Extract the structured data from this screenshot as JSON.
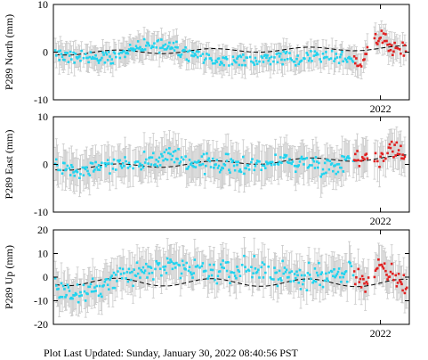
{
  "footer": "Plot Last Updated:   Sunday, January 30, 2022 08:40:56 PST",
  "colors": {
    "points_primary": "#22d3ee",
    "points_recent": "#e02020",
    "error_bars": "#c8c8c8",
    "trend": "#000000",
    "frame": "#000000",
    "background": "#ffffff"
  },
  "chart_data": [
    {
      "type": "scatter",
      "ylabel": "P289 North (mm)",
      "ylim": [
        -10,
        10
      ],
      "yticks": [
        -10,
        0,
        10
      ],
      "xlim": [
        2018.6,
        2022.3
      ],
      "xticks": [
        {
          "value": 2022.0,
          "label": "2022"
        }
      ],
      "error_bar": 2.4,
      "trend": {
        "x": [
          2018.62,
          2022.28
        ],
        "y": [
          -0.2,
          0.9
        ],
        "wiggle": 0.45
      },
      "recent_start": 2021.72,
      "gap": [
        2021.88,
        2021.93
      ],
      "series": [
        {
          "x": 2018.62,
          "y": -0.5
        },
        {
          "x": 2018.9,
          "y": -1.0
        },
        {
          "x": 2019.2,
          "y": -0.8
        },
        {
          "x": 2019.55,
          "y": 1.5
        },
        {
          "x": 2019.85,
          "y": 1.0
        },
        {
          "x": 2020.05,
          "y": -1.2
        },
        {
          "x": 2020.35,
          "y": -1.8
        },
        {
          "x": 2020.7,
          "y": -1.5
        },
        {
          "x": 2021.0,
          "y": -1.4
        },
        {
          "x": 2021.3,
          "y": -0.6
        },
        {
          "x": 2021.55,
          "y": -1.0
        },
        {
          "x": 2021.72,
          "y": -1.6
        },
        {
          "x": 2021.8,
          "y": -2.8
        },
        {
          "x": 2021.86,
          "y": 0.5
        },
        {
          "x": 2021.97,
          "y": 3.0
        },
        {
          "x": 2022.05,
          "y": 2.6
        },
        {
          "x": 2022.12,
          "y": 0.8
        },
        {
          "x": 2022.2,
          "y": 0.9
        },
        {
          "x": 2022.27,
          "y": 0.8
        }
      ],
      "spread": 1.2
    },
    {
      "type": "scatter",
      "ylabel": "P289 East (mm)",
      "ylim": [
        -10,
        10
      ],
      "yticks": [
        -10,
        0,
        10
      ],
      "xlim": [
        2018.6,
        2022.3
      ],
      "xticks": [
        {
          "value": 2022.0,
          "label": "2022"
        }
      ],
      "error_bar": 3.5,
      "trend": {
        "x": [
          2018.62,
          2022.28
        ],
        "y": [
          -0.8,
          1.5
        ],
        "wiggle": 0.5
      },
      "recent_start": 2021.72,
      "gap": [
        2021.88,
        2021.93
      ],
      "series": [
        {
          "x": 2018.62,
          "y": 0.5
        },
        {
          "x": 2018.8,
          "y": -1.8
        },
        {
          "x": 2019.1,
          "y": 0.0
        },
        {
          "x": 2019.45,
          "y": 0.2
        },
        {
          "x": 2019.75,
          "y": 1.5
        },
        {
          "x": 2020.0,
          "y": 0.8
        },
        {
          "x": 2020.3,
          "y": 0.0
        },
        {
          "x": 2020.6,
          "y": -0.2
        },
        {
          "x": 2020.9,
          "y": 0.6
        },
        {
          "x": 2021.2,
          "y": 0.5
        },
        {
          "x": 2021.5,
          "y": -0.5
        },
        {
          "x": 2021.72,
          "y": 1.5
        },
        {
          "x": 2021.8,
          "y": 2.0
        },
        {
          "x": 2021.86,
          "y": 0.5
        },
        {
          "x": 2021.97,
          "y": 1.0
        },
        {
          "x": 2022.05,
          "y": 1.5
        },
        {
          "x": 2022.12,
          "y": 3.5
        },
        {
          "x": 2022.2,
          "y": 3.0
        },
        {
          "x": 2022.27,
          "y": 2.2
        }
      ],
      "spread": 1.6
    },
    {
      "type": "scatter",
      "ylabel": "P289 Up (mm)",
      "ylim": [
        -20,
        20
      ],
      "yticks": [
        -20,
        -10,
        0,
        10,
        20
      ],
      "xlim": [
        2018.6,
        2022.3
      ],
      "xticks": [
        {
          "value": 2022.0,
          "label": "2022"
        }
      ],
      "error_bar": 7.0,
      "trend": {
        "x": [
          2018.62,
          2022.28
        ],
        "y": [
          -2.0,
          -2.5
        ],
        "wiggle": 1.6
      },
      "recent_start": 2021.72,
      "gap": [
        2021.88,
        2021.93
      ],
      "series": [
        {
          "x": 2018.62,
          "y": -5.0
        },
        {
          "x": 2018.75,
          "y": -6.0
        },
        {
          "x": 2018.9,
          "y": -7.0
        },
        {
          "x": 2019.1,
          "y": -3.0
        },
        {
          "x": 2019.4,
          "y": 1.0
        },
        {
          "x": 2019.7,
          "y": 4.0
        },
        {
          "x": 2020.0,
          "y": 3.0
        },
        {
          "x": 2020.3,
          "y": 2.0
        },
        {
          "x": 2020.6,
          "y": 4.0
        },
        {
          "x": 2020.9,
          "y": 1.0
        },
        {
          "x": 2021.2,
          "y": 0.0
        },
        {
          "x": 2021.5,
          "y": 1.0
        },
        {
          "x": 2021.72,
          "y": 2.0
        },
        {
          "x": 2021.8,
          "y": 0.0
        },
        {
          "x": 2021.86,
          "y": -3.0
        },
        {
          "x": 2021.97,
          "y": 3.0
        },
        {
          "x": 2022.05,
          "y": 1.5
        },
        {
          "x": 2022.12,
          "y": 1.0
        },
        {
          "x": 2022.2,
          "y": -2.0
        },
        {
          "x": 2022.27,
          "y": -3.0
        }
      ],
      "spread": 4.2
    }
  ]
}
